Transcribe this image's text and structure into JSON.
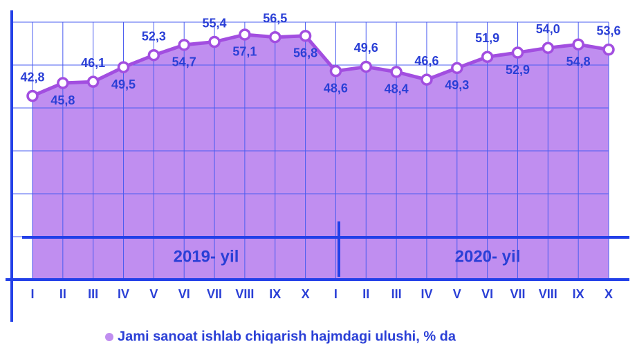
{
  "chart_data": {
    "type": "area",
    "categories": [
      "I",
      "II",
      "III",
      "IV",
      "V",
      "VI",
      "VII",
      "VIII",
      "IX",
      "X",
      "I",
      "II",
      "III",
      "IV",
      "V",
      "VI",
      "VII",
      "VIII",
      "IX",
      "X"
    ],
    "groups": [
      "2019- yil",
      "2020- yil"
    ],
    "series": [
      {
        "name": "Jami sanoat ishlab chiqarish hajmdagi ulushi, % da",
        "color": "#a24ee0",
        "fill": "#c08ef0",
        "values": [
          42.8,
          45.8,
          46.1,
          49.5,
          52.3,
          54.7,
          55.4,
          57.1,
          56.5,
          56.8,
          48.6,
          49.6,
          48.4,
          46.6,
          49.3,
          51.9,
          52.9,
          54.0,
          54.8,
          53.6
        ],
        "value_labels": [
          "42,8",
          "45,8",
          "46,1",
          "49,5",
          "52,3",
          "54,7",
          "55,4",
          "57,1",
          "56,5",
          "56,8",
          "48,6",
          "49,6",
          "48,4",
          "46,6",
          "49,3",
          "51,9",
          "52,9",
          "54,0",
          "54,8",
          "53,6"
        ]
      }
    ],
    "ylim": [
      0,
      60
    ],
    "yticks": [
      0,
      10,
      20,
      30,
      40,
      50,
      60
    ],
    "grid": true
  }
}
